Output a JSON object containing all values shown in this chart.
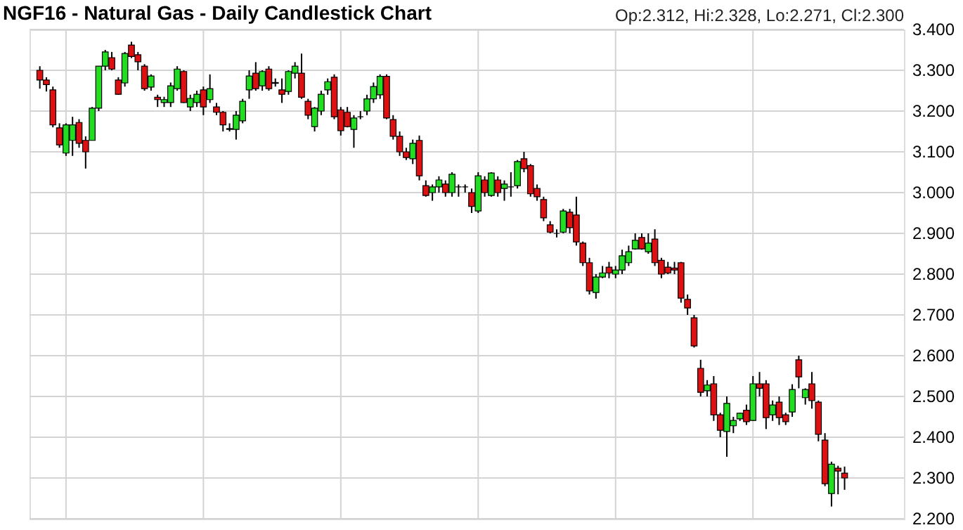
{
  "chart_data": {
    "type": "candlestick",
    "title": "NGF16 - Natural Gas - Daily Candlestick Chart",
    "categories": [
      null,
      null,
      null,
      null,
      null,
      null,
      null,
      null,
      null,
      null,
      null,
      null,
      null,
      null,
      null,
      null,
      null,
      null,
      null,
      null,
      null,
      null,
      null,
      null,
      null,
      null,
      null,
      null,
      null,
      null,
      null,
      null,
      null,
      null,
      null,
      null,
      null,
      null,
      null,
      null,
      null,
      null,
      null,
      null,
      null,
      null,
      null,
      null,
      null,
      null,
      null,
      null,
      null,
      null,
      null,
      null,
      null,
      null,
      null,
      null,
      null,
      null,
      null,
      null,
      null,
      null,
      null,
      null,
      null,
      null,
      null,
      null,
      null,
      null,
      null,
      null,
      null,
      null,
      null,
      null,
      null,
      null,
      null,
      null,
      null,
      null,
      null,
      null,
      null,
      null,
      null,
      null,
      null,
      null,
      null,
      null,
      null,
      null,
      null,
      null,
      null,
      null,
      null,
      null,
      null,
      null,
      null,
      null,
      null,
      null,
      null,
      null,
      null,
      null,
      null,
      null,
      null,
      null,
      null,
      null,
      null,
      null,
      null,
      null
    ],
    "ohlc": [
      [
        3.3,
        3.31,
        3.255,
        3.276
      ],
      [
        3.276,
        3.283,
        3.248,
        3.265
      ],
      [
        3.252,
        3.26,
        3.16,
        3.166
      ],
      [
        3.159,
        3.17,
        3.11,
        3.117
      ],
      [
        3.097,
        3.17,
        3.09,
        3.166
      ],
      [
        3.128,
        3.186,
        3.09,
        3.166
      ],
      [
        3.172,
        3.18,
        3.11,
        3.121
      ],
      [
        3.128,
        3.138,
        3.059,
        3.1
      ],
      [
        3.128,
        3.21,
        3.128,
        3.207
      ],
      [
        3.207,
        3.31,
        3.2,
        3.31
      ],
      [
        3.31,
        3.35,
        3.3,
        3.345
      ],
      [
        3.331,
        3.345,
        3.3,
        3.303
      ],
      [
        3.276,
        3.283,
        3.24,
        3.241
      ],
      [
        3.269,
        3.345,
        3.26,
        3.341
      ],
      [
        3.362,
        3.37,
        3.33,
        3.334
      ],
      [
        3.338,
        3.345,
        3.3,
        3.321
      ],
      [
        3.31,
        3.315,
        3.25,
        3.255
      ],
      [
        3.259,
        3.29,
        3.25,
        3.286
      ],
      [
        3.234,
        3.24,
        3.21,
        3.228
      ],
      [
        3.221,
        3.235,
        3.21,
        3.228
      ],
      [
        3.221,
        3.27,
        3.21,
        3.262
      ],
      [
        3.255,
        3.31,
        3.25,
        3.303
      ],
      [
        3.297,
        3.3,
        3.22,
        3.221
      ],
      [
        3.21,
        3.24,
        3.2,
        3.231
      ],
      [
        3.221,
        3.25,
        3.21,
        3.241
      ],
      [
        3.252,
        3.26,
        3.19,
        3.21
      ],
      [
        3.228,
        3.29,
        3.22,
        3.255
      ],
      [
        3.21,
        3.22,
        3.19,
        3.197
      ],
      [
        3.197,
        3.2,
        3.15,
        3.166
      ],
      [
        3.157,
        3.17,
        3.15,
        3.155
      ],
      [
        3.155,
        3.2,
        3.13,
        3.19
      ],
      [
        3.176,
        3.23,
        3.17,
        3.224
      ],
      [
        3.252,
        3.3,
        3.23,
        3.286
      ],
      [
        3.293,
        3.32,
        3.25,
        3.255
      ],
      [
        3.262,
        3.3,
        3.25,
        3.297
      ],
      [
        3.303,
        3.31,
        3.25,
        3.255
      ],
      [
        3.27,
        3.28,
        3.26,
        3.268
      ],
      [
        3.252,
        3.28,
        3.22,
        3.241
      ],
      [
        3.248,
        3.3,
        3.24,
        3.297
      ],
      [
        3.293,
        3.32,
        3.28,
        3.31
      ],
      [
        3.293,
        3.341,
        3.23,
        3.234
      ],
      [
        3.224,
        3.23,
        3.18,
        3.19
      ],
      [
        3.162,
        3.21,
        3.15,
        3.207
      ],
      [
        3.2,
        3.25,
        3.19,
        3.241
      ],
      [
        3.252,
        3.28,
        3.24,
        3.272
      ],
      [
        3.283,
        3.29,
        3.18,
        3.186
      ],
      [
        3.203,
        3.21,
        3.14,
        3.152
      ],
      [
        3.197,
        3.21,
        3.16,
        3.162
      ],
      [
        3.155,
        3.19,
        3.11,
        3.183
      ],
      [
        3.186,
        3.2,
        3.18,
        3.186
      ],
      [
        3.2,
        3.24,
        3.19,
        3.23
      ],
      [
        3.23,
        3.27,
        3.22,
        3.26
      ],
      [
        3.24,
        3.29,
        3.23,
        3.285
      ],
      [
        3.285,
        3.29,
        3.18,
        3.183
      ],
      [
        3.179,
        3.19,
        3.13,
        3.138
      ],
      [
        3.138,
        3.15,
        3.09,
        3.1
      ],
      [
        3.1,
        3.11,
        3.08,
        3.086
      ],
      [
        3.083,
        3.13,
        3.07,
        3.121
      ],
      [
        3.128,
        3.14,
        3.03,
        3.041
      ],
      [
        3.017,
        3.03,
        2.99,
        2.993
      ],
      [
        3.0,
        3.02,
        2.98,
        3.014
      ],
      [
        3.014,
        3.04,
        3.0,
        3.031
      ],
      [
        3.021,
        3.03,
        2.99,
        3.0
      ],
      [
        3.0,
        3.05,
        2.99,
        3.045
      ],
      [
        3.014,
        3.02,
        2.99,
        3.014
      ],
      [
        3.014,
        3.02,
        3.0,
        3.014
      ],
      [
        3.0,
        3.01,
        2.95,
        2.966
      ],
      [
        2.955,
        3.05,
        2.95,
        3.041
      ],
      [
        3.031,
        3.04,
        2.99,
        3.0
      ],
      [
        2.993,
        3.05,
        2.99,
        3.048
      ],
      [
        3.031,
        3.04,
        2.99,
        3.0
      ],
      [
        3.01,
        3.03,
        2.98,
        3.021
      ],
      [
        3.014,
        3.05,
        2.99,
        3.014
      ],
      [
        3.017,
        3.08,
        3.01,
        3.076
      ],
      [
        3.083,
        3.1,
        3.05,
        3.059
      ],
      [
        3.066,
        3.07,
        2.99,
        2.997
      ],
      [
        3.01,
        3.02,
        2.98,
        2.99
      ],
      [
        2.983,
        2.99,
        2.93,
        2.938
      ],
      [
        2.921,
        2.93,
        2.9,
        2.903
      ],
      [
        2.9,
        2.91,
        2.89,
        2.9
      ],
      [
        2.903,
        2.96,
        2.9,
        2.955
      ],
      [
        2.952,
        2.96,
        2.9,
        2.914
      ],
      [
        2.945,
        2.99,
        2.87,
        2.879
      ],
      [
        2.876,
        2.88,
        2.82,
        2.828
      ],
      [
        2.828,
        2.84,
        2.75,
        2.759
      ],
      [
        2.755,
        2.8,
        2.74,
        2.793
      ],
      [
        2.793,
        2.82,
        2.79,
        2.803
      ],
      [
        2.817,
        2.83,
        2.79,
        2.803
      ],
      [
        2.8,
        2.82,
        2.79,
        2.81
      ],
      [
        2.81,
        2.86,
        2.8,
        2.845
      ],
      [
        2.828,
        2.87,
        2.82,
        2.855
      ],
      [
        2.862,
        2.9,
        2.86,
        2.883
      ],
      [
        2.89,
        2.9,
        2.86,
        2.862
      ],
      [
        2.855,
        2.9,
        2.85,
        2.876
      ],
      [
        2.886,
        2.91,
        2.82,
        2.828
      ],
      [
        2.834,
        2.84,
        2.79,
        2.8
      ],
      [
        2.817,
        2.83,
        2.8,
        2.803
      ],
      [
        2.815,
        2.83,
        2.8,
        2.81
      ],
      [
        2.828,
        2.83,
        2.73,
        2.741
      ],
      [
        2.738,
        2.75,
        2.7,
        2.717
      ],
      [
        2.693,
        2.7,
        2.62,
        2.624
      ],
      [
        2.569,
        2.59,
        2.5,
        2.51
      ],
      [
        2.514,
        2.54,
        2.5,
        2.528
      ],
      [
        2.531,
        2.55,
        2.44,
        2.455
      ],
      [
        2.455,
        2.46,
        2.4,
        2.417
      ],
      [
        2.414,
        2.5,
        2.352,
        2.483
      ],
      [
        2.428,
        2.45,
        2.41,
        2.441
      ],
      [
        2.445,
        2.46,
        2.44,
        2.459
      ],
      [
        2.466,
        2.48,
        2.43,
        2.438
      ],
      [
        2.441,
        2.55,
        2.44,
        2.531
      ],
      [
        2.531,
        2.56,
        2.5,
        2.52
      ],
      [
        2.531,
        2.54,
        2.42,
        2.448
      ],
      [
        2.455,
        2.49,
        2.44,
        2.479
      ],
      [
        2.486,
        2.5,
        2.43,
        2.448
      ],
      [
        2.455,
        2.46,
        2.43,
        2.438
      ],
      [
        2.462,
        2.53,
        2.45,
        2.517
      ],
      [
        2.59,
        2.6,
        2.52,
        2.548
      ],
      [
        2.497,
        2.52,
        2.48,
        2.517
      ],
      [
        2.531,
        2.56,
        2.47,
        2.49
      ],
      [
        2.486,
        2.49,
        2.39,
        2.407
      ],
      [
        2.393,
        2.41,
        2.28,
        2.286
      ],
      [
        2.262,
        2.34,
        2.23,
        2.334
      ],
      [
        2.324,
        2.33,
        2.26,
        2.317
      ],
      [
        2.312,
        2.328,
        2.271,
        2.3
      ]
    ],
    "ylim": [
      2.2,
      3.4
    ],
    "yticks": [
      {
        "value": 2.2,
        "label": "2.200"
      },
      {
        "value": 2.3,
        "label": "2.300"
      },
      {
        "value": 2.4,
        "label": "2.400"
      },
      {
        "value": 2.5,
        "label": "2.500"
      },
      {
        "value": 2.6,
        "label": "2.600"
      },
      {
        "value": 2.7,
        "label": "2.700"
      },
      {
        "value": 2.8,
        "label": "2.800"
      },
      {
        "value": 2.9,
        "label": "2.900"
      },
      {
        "value": 3.0,
        "label": "3.000"
      },
      {
        "value": 3.1,
        "label": "3.100"
      },
      {
        "value": 3.2,
        "label": "3.200"
      },
      {
        "value": 3.3,
        "label": "3.300"
      },
      {
        "value": 3.4,
        "label": "3.400"
      }
    ],
    "grid": true,
    "tick_labels": "y",
    "annotations": [
      "Op:2.312, Hi:2.328, Lo:2.271, Cl:2.300"
    ]
  }
}
